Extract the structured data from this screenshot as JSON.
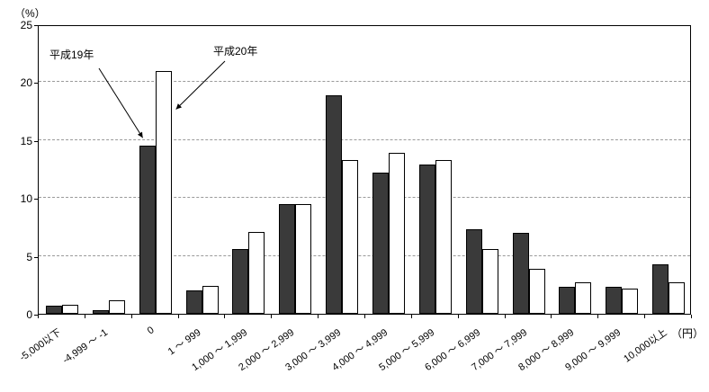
{
  "chart_data": {
    "type": "bar",
    "title": "",
    "ylabel": "（%）",
    "xunit": "（円）",
    "ylim": [
      0,
      25
    ],
    "yticks": [
      0,
      5,
      10,
      15,
      20,
      25
    ],
    "grid": "dashed-horizontal",
    "categories": [
      "-5,000以下",
      "-4,999 ～ -1",
      "0",
      "1 ～ 999",
      "1,000 ～ 1,999",
      "2,000 ～ 2,999",
      "3,000 ～ 3,999",
      "4,000 ～ 4,999",
      "5,000 ～ 5,999",
      "6,000 ～ 6,999",
      "7,000 ～ 7,999",
      "8,000 ～ 8,999",
      "9,000 ～ 9,999",
      "10,000以上"
    ],
    "series": [
      {
        "name": "平成19年",
        "color": "#3a3a3a",
        "border": "#000000",
        "values": [
          0.7,
          0.3,
          14.5,
          2.0,
          5.6,
          9.5,
          18.9,
          12.2,
          12.9,
          7.3,
          7.0,
          2.3,
          2.3,
          4.3
        ]
      },
      {
        "name": "平成20年",
        "color": "#ffffff",
        "border": "#000000",
        "values": [
          0.8,
          1.2,
          21.0,
          2.4,
          7.1,
          9.5,
          13.3,
          13.9,
          13.3,
          5.6,
          3.9,
          2.7,
          2.2,
          2.7
        ]
      }
    ],
    "annotations": [
      {
        "label": "平成19年",
        "points_to": {
          "series": "平成19年",
          "category": "0"
        }
      },
      {
        "label": "平成20年",
        "points_to": {
          "series": "平成20年",
          "category": "0"
        }
      }
    ]
  }
}
